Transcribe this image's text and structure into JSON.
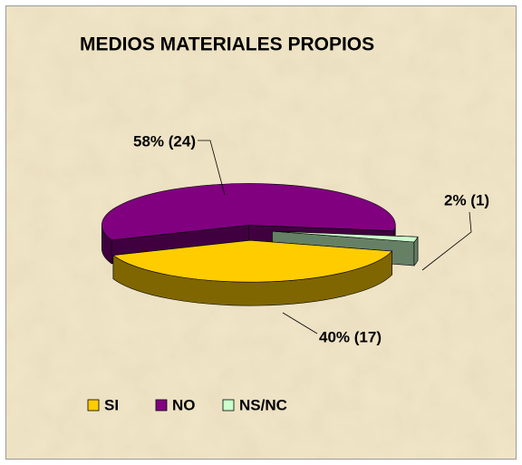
{
  "chart_data": {
    "type": "pie3d",
    "title": "MEDIOS MATERIALES PROPIOS",
    "categories": [
      "SI",
      "NO",
      "NS/NC"
    ],
    "values": [
      40,
      58,
      2
    ],
    "value_labels": [
      "40% (17)",
      "58% (24)",
      "2% (1)"
    ],
    "colors": [
      "#ffcc00",
      "#800080",
      "#ccffcc"
    ],
    "legend": "bottom-left"
  }
}
